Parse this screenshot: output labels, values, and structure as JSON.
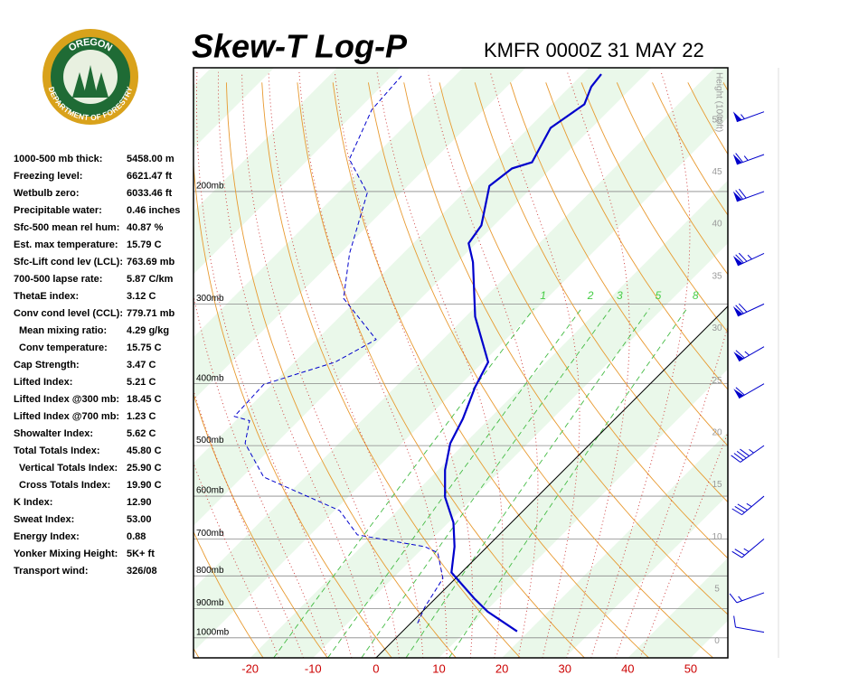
{
  "logo": {
    "top": "OREGON",
    "bottom": "DEPARTMENT OF FORESTRY"
  },
  "stats": [
    {
      "label": "1000-500 mb thick:",
      "value": "5458.00 m"
    },
    {
      "label": "Freezing level:",
      "value": "6621.47 ft"
    },
    {
      "label": "Wetbulb zero:",
      "value": "6033.46 ft"
    },
    {
      "label": "Precipitable water:",
      "value": "0.46 inches"
    },
    {
      "label": "Sfc-500 mean rel hum:",
      "value": "40.87 %"
    },
    {
      "label": "Est. max temperature:",
      "value": "15.79 C"
    },
    {
      "label": "Sfc-Lift cond lev (LCL):",
      "value": "763.69 mb"
    },
    {
      "label": "700-500 lapse rate:",
      "value": "5.87 C/km"
    },
    {
      "label": "ThetaE index:",
      "value": "3.12 C"
    },
    {
      "label": "Conv cond level (CCL):",
      "value": "779.71 mb"
    },
    {
      "label": "Mean mixing ratio:",
      "value": "4.29 g/kg",
      "indent": true
    },
    {
      "label": "Conv temperature:",
      "value": "15.75 C",
      "indent": true
    },
    {
      "label": "Cap Strength:",
      "value": "3.47 C"
    },
    {
      "label": "Lifted Index:",
      "value": "5.21 C"
    },
    {
      "label": "Lifted Index @300 mb:",
      "value": "18.45 C"
    },
    {
      "label": "Lifted Index @700 mb:",
      "value": "1.23 C"
    },
    {
      "label": "Showalter Index:",
      "value": "5.62 C"
    },
    {
      "label": "Total Totals Index:",
      "value": "45.80 C"
    },
    {
      "label": "Vertical Totals Index:",
      "value": "25.90 C",
      "indent": true
    },
    {
      "label": "Cross Totals Index:",
      "value": "19.90 C",
      "indent": true
    },
    {
      "label": "K Index:",
      "value": "12.90"
    },
    {
      "label": "Sweat Index:",
      "value": "53.00"
    },
    {
      "label": "Energy Index:",
      "value": "0.88"
    },
    {
      "label": "Yonker Mixing Height:",
      "value": "5K+ ft"
    },
    {
      "label": "Transport wind:",
      "value": "326/08"
    }
  ],
  "chart_data": {
    "type": "skewt",
    "title": "Skew-T Log-P",
    "subtitle": "KMFR 0000Z 31 MAY 22",
    "xlim": [
      -29.0,
      55.9
    ],
    "xticks": [
      -20,
      -10,
      0,
      10,
      20,
      30,
      40,
      50
    ],
    "ylim": [
      1075,
      128
    ],
    "log_y": true,
    "yticks": [
      {
        "value": 200,
        "label": "200mb"
      },
      {
        "value": 300,
        "label": "300mb"
      },
      {
        "value": 400,
        "label": "400mb"
      },
      {
        "value": 500,
        "label": "500mb"
      },
      {
        "value": 600,
        "label": "600mb"
      },
      {
        "value": 700,
        "label": "700mb"
      },
      {
        "value": 800,
        "label": "800mb"
      },
      {
        "value": 900,
        "label": "900mb"
      },
      {
        "value": 1000,
        "label": "1000mb"
      }
    ],
    "y2label": "Height (1000ft)",
    "y2lim": [
      -1.6,
      55
    ],
    "y2ticks": [
      0,
      5,
      10,
      15,
      20,
      25,
      30,
      35,
      40,
      45,
      50
    ],
    "mixing_ratios": [
      1,
      2,
      3,
      5,
      8
    ],
    "zero_isotherm": 0,
    "series": [
      {
        "color": "#0000cc",
        "dashed": false,
        "p": [
          977,
          910,
          867,
          790,
          720,
          660,
          602,
          546,
          496,
          454,
          405,
          370,
          314,
          258,
          241,
          226,
          196,
          184,
          180,
          159,
          146,
          137,
          131
        ],
        "values": [
          18.2,
          10.4,
          6.1,
          -1.6,
          -5.2,
          -9.2,
          -14.6,
          -18.9,
          -22.3,
          -24.2,
          -27.3,
          -29.2,
          -38.5,
          -47.5,
          -51.2,
          -52,
          -57,
          -56.2,
          -54,
          -56.5,
          -54.9,
          -56.6,
          -57
        ]
      },
      {
        "color": "#0000cc",
        "dashed": true,
        "p": [
          949,
          896,
          807,
          736,
          720,
          690,
          632,
          560,
          496,
          457,
          450,
          401,
          370,
          341,
          294,
          250,
          201,
          178,
          149,
          131
        ],
        "values": [
          1.1,
          -0.3,
          -2.0,
          -6.9,
          -9.9,
          -22.5,
          -29.2,
          -46.6,
          -54.9,
          -57.8,
          -60.9,
          -61.3,
          -53.5,
          -50.6,
          -62.3,
          -68.5,
          -75.3,
          -83.5,
          -87.8,
          -88.5
        ]
      }
    ],
    "winds": {
      "p": [
        980,
        850,
        700,
        600,
        500,
        400,
        350,
        300,
        250,
        200,
        175,
        150
      ],
      "dir": [
        280,
        250,
        230,
        230,
        235,
        240,
        240,
        245,
        245,
        250,
        250,
        250
      ],
      "speed": [
        10,
        15,
        25,
        35,
        45,
        60,
        65,
        70,
        75,
        70,
        65,
        55
      ]
    }
  }
}
